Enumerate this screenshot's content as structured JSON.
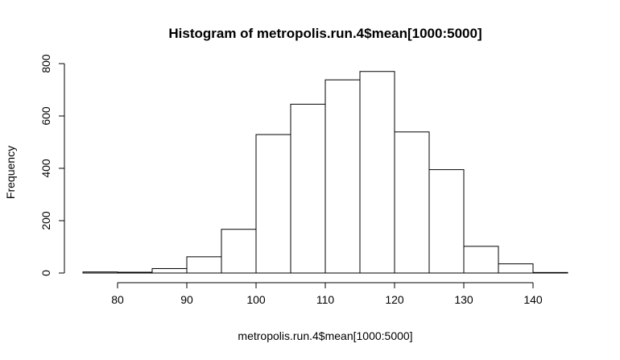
{
  "chart_data": {
    "type": "bar",
    "subtype": "histogram",
    "title": "Histogram of metropolis.run.4$mean[1000:5000]",
    "xlabel": "metropolis.run.4$mean[1000:5000]",
    "ylabel": "Frequency",
    "bin_edges": [
      75,
      80,
      85,
      90,
      95,
      100,
      105,
      110,
      115,
      120,
      125,
      130,
      135,
      140,
      145
    ],
    "values": [
      4,
      3,
      17,
      62,
      167,
      529,
      645,
      738,
      770,
      539,
      395,
      102,
      35,
      2
    ],
    "xlim": [
      75,
      145
    ],
    "ylim": [
      0,
      800
    ],
    "x_ticks": [
      80,
      90,
      100,
      110,
      120,
      130,
      140
    ],
    "y_ticks": [
      0,
      200,
      400,
      600,
      800
    ],
    "x_tick_labels": [
      "80",
      "90",
      "100",
      "110",
      "120",
      "130",
      "140"
    ],
    "y_tick_labels": [
      "0",
      "200",
      "400",
      "600",
      "800"
    ],
    "bar_fill": "#ffffff",
    "bar_stroke": "#000000",
    "grid": false,
    "legend": "none"
  }
}
